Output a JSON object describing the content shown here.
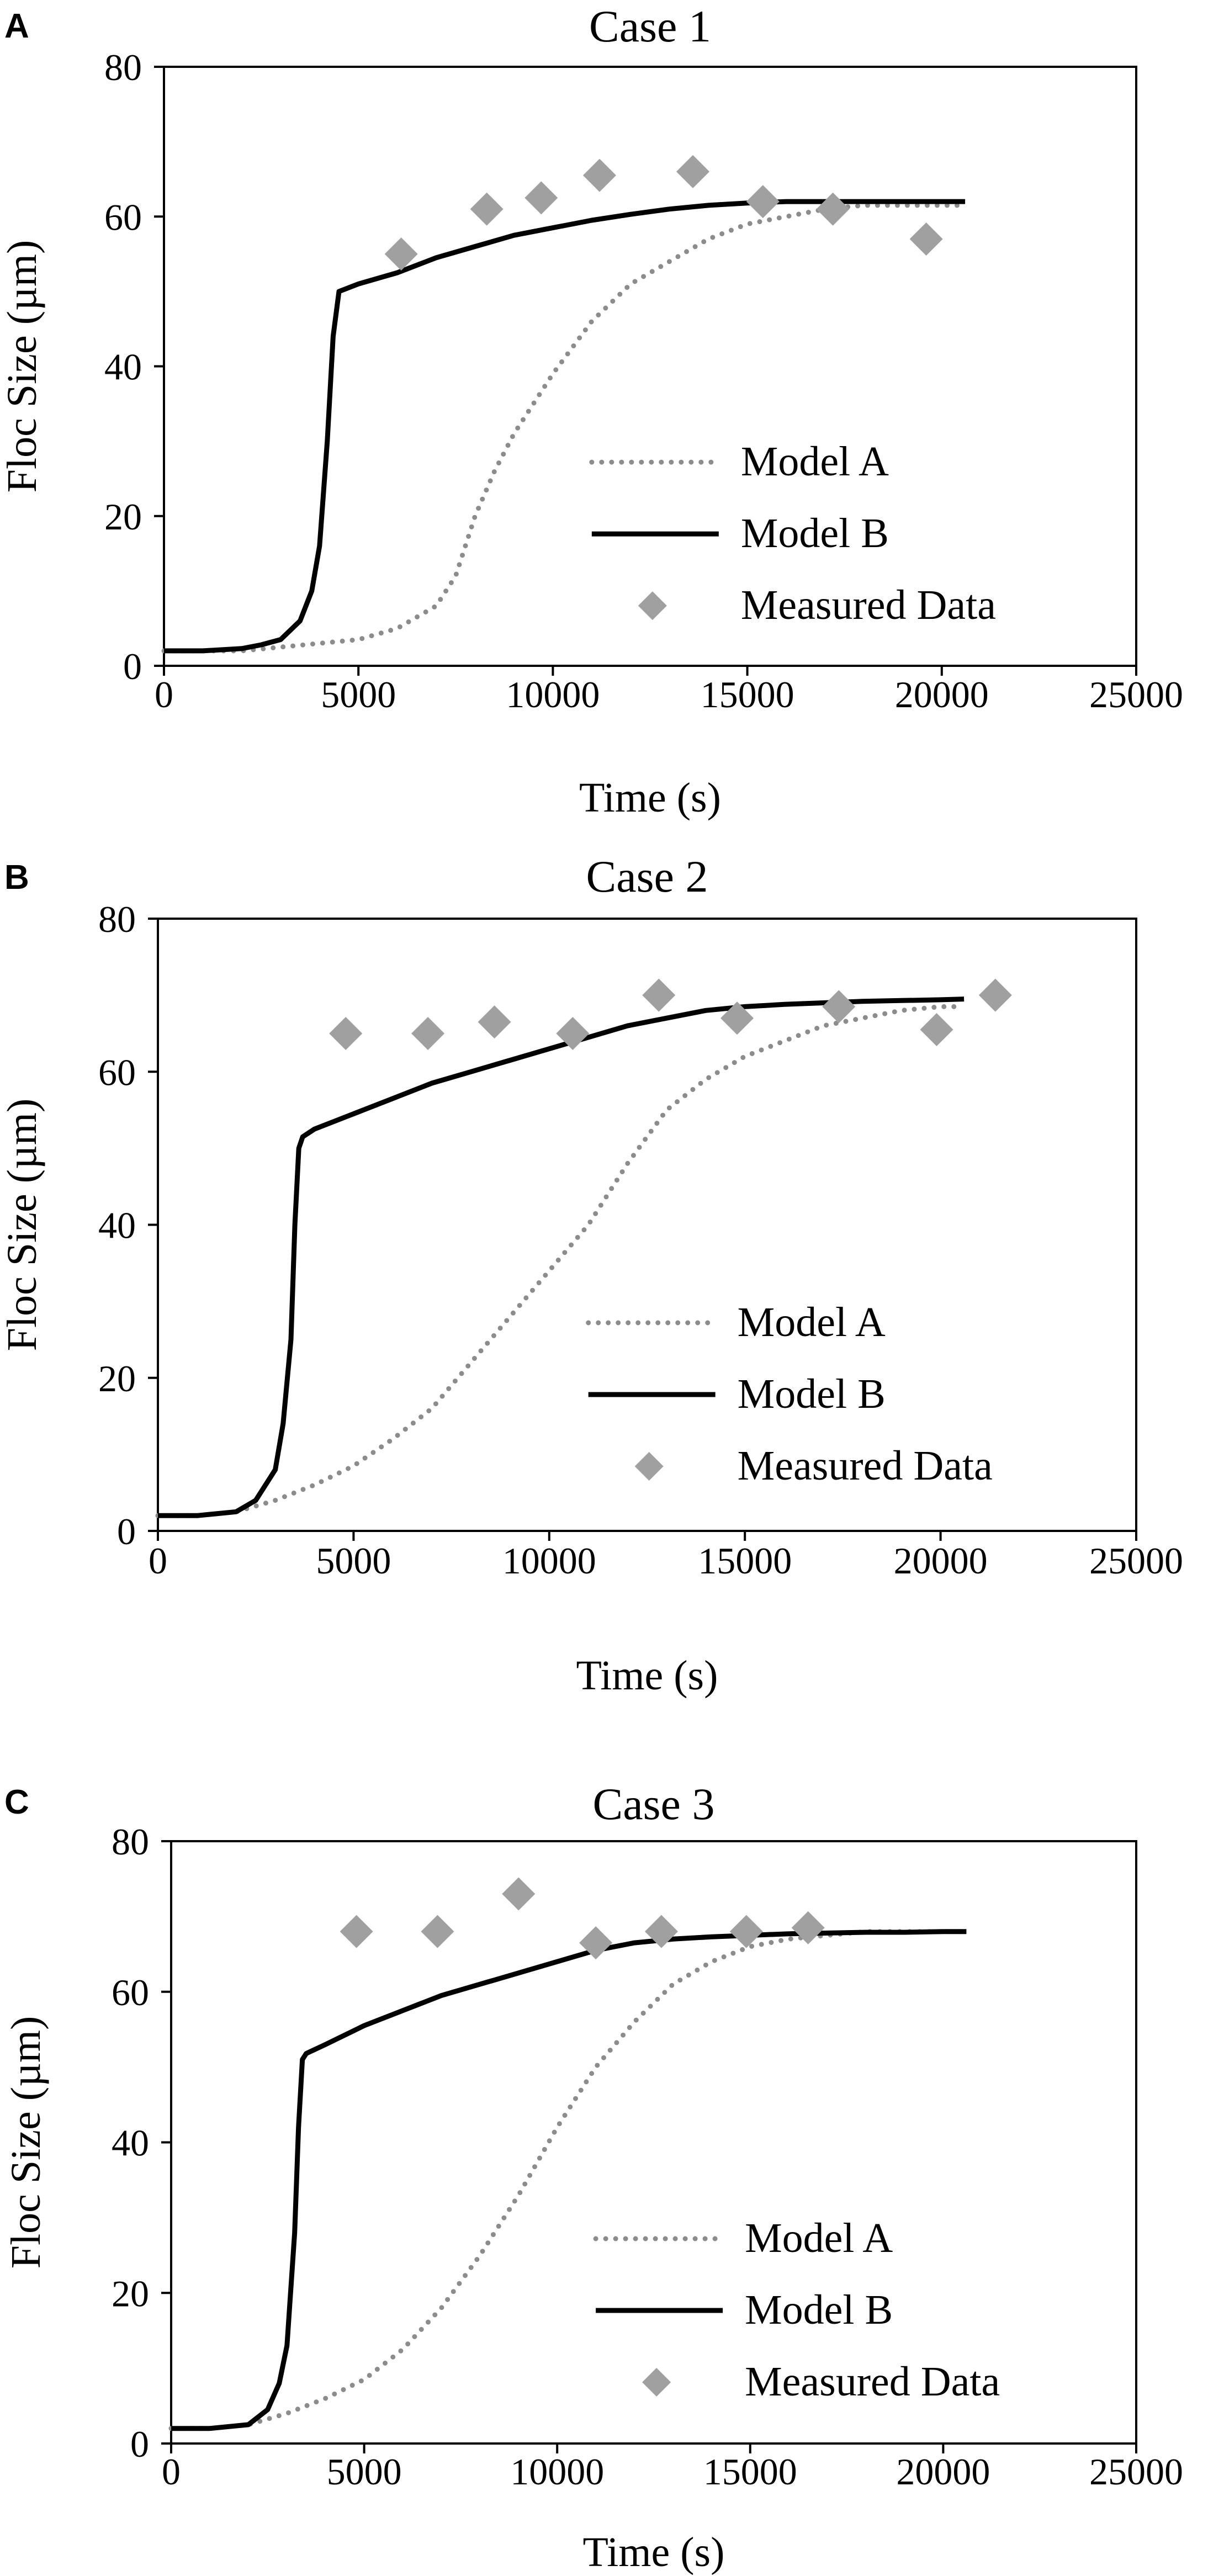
{
  "colors": {
    "model_a": "#8c8c8c",
    "model_b": "#000000",
    "measured": "#a0a0a0",
    "axis": "#000000",
    "background": "#ffffff"
  },
  "chart_data": [
    {
      "type": "line",
      "panel_label": "A",
      "title": "Case 1",
      "xlabel": "Time (s)",
      "ylabel": "Floc Size (µm)",
      "xlim": [
        0,
        25000
      ],
      "ylim": [
        0,
        80
      ],
      "xticks": [
        "0",
        "5000",
        "10000",
        "15000",
        "20000",
        "25000"
      ],
      "yticks": [
        "0",
        "20",
        "40",
        "60",
        "80"
      ],
      "grid": false,
      "legend_position": "bottom-right",
      "series": [
        {
          "name": "Model A",
          "style": "dotted",
          "x": [
            0,
            1000,
            2000,
            3000,
            4000,
            5000,
            6000,
            7000,
            7500,
            8000,
            8500,
            9000,
            9500,
            10000,
            11000,
            12000,
            13000,
            14000,
            15000,
            16000,
            17000,
            18000,
            19000,
            20000,
            20500
          ],
          "y": [
            2,
            2,
            2,
            2.5,
            3,
            3.5,
            5,
            8,
            12,
            20,
            26,
            31,
            35,
            39,
            46,
            51,
            54,
            57,
            59,
            60,
            61,
            61.5,
            61.5,
            61.5,
            61.5
          ]
        },
        {
          "name": "Model B",
          "style": "solid",
          "x": [
            0,
            1000,
            2000,
            2500,
            3000,
            3500,
            3800,
            4000,
            4200,
            4350,
            4500,
            5000,
            6000,
            7000,
            8000,
            9000,
            10000,
            11000,
            12000,
            13000,
            14000,
            15000,
            16000,
            17000,
            18000,
            19000,
            20000,
            20600
          ],
          "y": [
            2,
            2,
            2.3,
            2.8,
            3.5,
            6,
            10,
            16,
            30,
            44,
            50,
            51,
            52.5,
            54.5,
            56,
            57.5,
            58.5,
            59.5,
            60.3,
            61,
            61.5,
            61.8,
            62,
            62,
            62,
            62,
            62,
            62
          ]
        },
        {
          "name": "Measured Data",
          "style": "markers",
          "x": [
            6100,
            8300,
            9700,
            11200,
            13600,
            15400,
            17200,
            19600
          ],
          "y": [
            55,
            61,
            62.5,
            65.5,
            66,
            62,
            61,
            57
          ]
        }
      ]
    },
    {
      "type": "line",
      "panel_label": "B",
      "title": "Case 2",
      "xlabel": "Time (s)",
      "ylabel": "Floc Size (µm)",
      "xlim": [
        0,
        25000
      ],
      "ylim": [
        0,
        80
      ],
      "xticks": [
        "0",
        "5000",
        "10000",
        "15000",
        "20000",
        "25000"
      ],
      "yticks": [
        "0",
        "20",
        "40",
        "60",
        "80"
      ],
      "grid": false,
      "legend_position": "bottom-right",
      "series": [
        {
          "name": "Model A",
          "style": "dotted",
          "x": [
            0,
            1000,
            2000,
            3000,
            4000,
            5000,
            6000,
            7000,
            8000,
            9000,
            10000,
            11000,
            12000,
            13000,
            14000,
            15000,
            16000,
            17000,
            18000,
            19000,
            20000,
            20500
          ],
          "y": [
            2,
            2,
            2.5,
            4,
            6,
            8.5,
            12,
            16,
            22,
            28,
            34,
            40,
            48,
            55,
            59,
            62,
            64,
            66,
            67,
            68,
            68.5,
            68.5
          ]
        },
        {
          "name": "Model B",
          "style": "solid",
          "x": [
            0,
            1000,
            2000,
            2500,
            3000,
            3200,
            3400,
            3500,
            3600,
            3700,
            4000,
            5000,
            6000,
            7000,
            8000,
            9000,
            10000,
            11000,
            12000,
            13000,
            14000,
            15000,
            16000,
            17000,
            18000,
            19000,
            20000,
            20600
          ],
          "y": [
            2,
            2,
            2.5,
            4,
            8,
            14,
            25,
            40,
            50,
            51.5,
            52.5,
            54.5,
            56.5,
            58.5,
            60,
            61.5,
            63,
            64.5,
            66,
            67,
            68,
            68.5,
            68.8,
            69,
            69.2,
            69.3,
            69.4,
            69.5
          ]
        },
        {
          "name": "Measured Data",
          "style": "markers",
          "x": [
            4800,
            6900,
            8600,
            10600,
            12800,
            14800,
            17400,
            19900,
            21400
          ],
          "y": [
            65,
            65,
            66.5,
            65,
            70,
            67,
            68.5,
            65.5,
            70
          ]
        }
      ]
    },
    {
      "type": "line",
      "panel_label": "C",
      "title": "Case 3",
      "xlabel": "Time (s)",
      "ylabel": "Floc Size (µm)",
      "xlim": [
        0,
        25000
      ],
      "ylim": [
        0,
        80
      ],
      "xticks": [
        "0",
        "5000",
        "10000",
        "15000",
        "20000",
        "25000"
      ],
      "yticks": [
        "0",
        "20",
        "40",
        "60",
        "80"
      ],
      "grid": false,
      "legend_position": "bottom-right",
      "series": [
        {
          "name": "Model A",
          "style": "dotted",
          "x": [
            0,
            1000,
            2000,
            3000,
            4000,
            5000,
            6000,
            7000,
            8000,
            9000,
            10000,
            11000,
            12000,
            13000,
            14000,
            15000,
            16000,
            17000,
            18000,
            19000,
            20000,
            20500
          ],
          "y": [
            2,
            2,
            2.5,
            4,
            6,
            8.5,
            12.5,
            18,
            25,
            33,
            42,
            50,
            56,
            61,
            64,
            66,
            67,
            67.5,
            68,
            68,
            68,
            68
          ]
        },
        {
          "name": "Model B",
          "style": "solid",
          "x": [
            0,
            1000,
            2000,
            2500,
            2800,
            3000,
            3200,
            3300,
            3400,
            3500,
            4000,
            5000,
            6000,
            7000,
            8000,
            9000,
            10000,
            11000,
            12000,
            13000,
            14000,
            15000,
            16000,
            17000,
            18000,
            19000,
            20000,
            20600
          ],
          "y": [
            2,
            2,
            2.5,
            4.5,
            8,
            13,
            28,
            42,
            51,
            51.8,
            53,
            55.5,
            57.5,
            59.5,
            61,
            62.5,
            64,
            65.5,
            66.5,
            67,
            67.3,
            67.5,
            67.7,
            67.8,
            67.9,
            67.9,
            68,
            68
          ]
        },
        {
          "name": "Measured Data",
          "style": "markers",
          "x": [
            4800,
            6900,
            9000,
            11000,
            12700,
            14900,
            16500
          ],
          "y": [
            68,
            68,
            73,
            66.5,
            68,
            68,
            68.5
          ]
        }
      ]
    }
  ]
}
